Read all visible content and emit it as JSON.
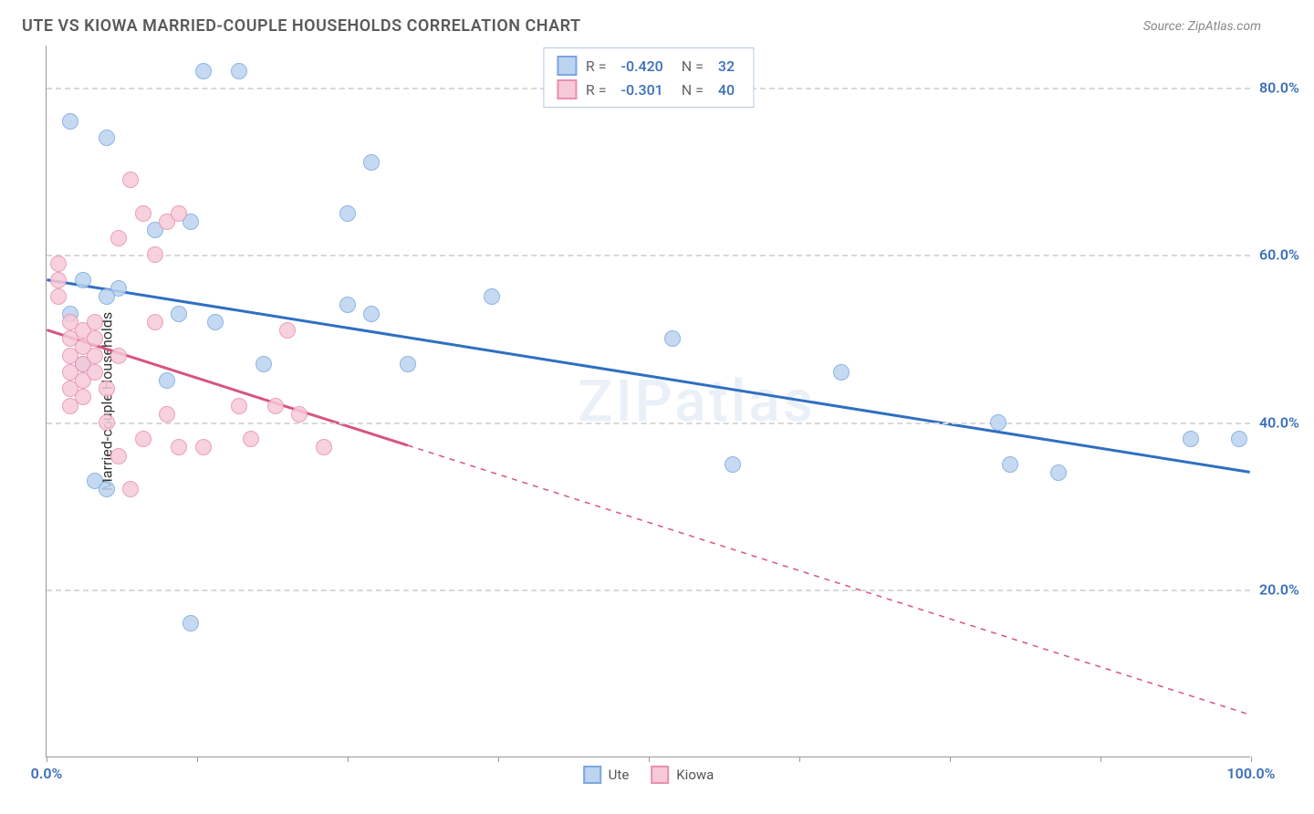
{
  "header": {
    "title": "UTE VS KIOWA MARRIED-COUPLE HOUSEHOLDS CORRELATION CHART",
    "source": "Source: ZipAtlas.com"
  },
  "chart": {
    "type": "scatter",
    "y_axis_label": "Married-couple Households",
    "xlim": [
      0,
      100
    ],
    "ylim": [
      0,
      85
    ],
    "x_ticks": [
      0,
      12.5,
      25,
      37.5,
      50,
      62.5,
      75,
      87.5,
      100
    ],
    "x_tick_labels": {
      "0": "0.0%",
      "100": "100.0%"
    },
    "y_gridlines": [
      20,
      40,
      60,
      80
    ],
    "y_tick_labels": {
      "20": "20.0%",
      "40": "40.0%",
      "60": "60.0%",
      "80": "80.0%"
    },
    "y_label_color": "#3b6fb8",
    "x_label_color": "#3b6fb8",
    "background_color": "#ffffff",
    "grid_color": "#d8d8d8",
    "watermark": "ZIPatlas",
    "marker_radius": 9,
    "series": [
      {
        "name": "Ute",
        "fill": "#bcd4f0",
        "stroke": "#7ba8de",
        "R": "-0.420",
        "N": "32",
        "line": {
          "x1": 0,
          "y1": 57,
          "x2": 100,
          "y2": 34,
          "dash_after_x": null,
          "width": 3,
          "color": "#2f6fc2"
        },
        "points": [
          [
            2,
            76
          ],
          [
            5,
            74
          ],
          [
            13,
            82
          ],
          [
            16,
            82
          ],
          [
            3,
            57
          ],
          [
            6,
            56
          ],
          [
            2,
            53
          ],
          [
            5,
            55
          ],
          [
            9,
            63
          ],
          [
            12,
            64
          ],
          [
            3,
            47
          ],
          [
            10,
            45
          ],
          [
            4,
            33
          ],
          [
            5,
            32
          ],
          [
            11,
            53
          ],
          [
            14,
            52
          ],
          [
            18,
            47
          ],
          [
            25,
            54
          ],
          [
            27,
            53
          ],
          [
            30,
            47
          ],
          [
            27,
            71
          ],
          [
            25,
            65
          ],
          [
            37,
            55
          ],
          [
            52,
            50
          ],
          [
            66,
            46
          ],
          [
            79,
            40
          ],
          [
            80,
            35
          ],
          [
            84,
            34
          ],
          [
            57,
            35
          ],
          [
            95,
            38
          ],
          [
            99,
            38
          ],
          [
            12,
            16
          ]
        ]
      },
      {
        "name": "Kiowa",
        "fill": "#f6c9d8",
        "stroke": "#e890b0",
        "R": "-0.301",
        "N": "40",
        "line": {
          "x1": 0,
          "y1": 51,
          "x2": 100,
          "y2": 5,
          "dash_after_x": 30,
          "width": 3,
          "color": "#d6557f"
        },
        "points": [
          [
            1,
            59
          ],
          [
            1,
            57
          ],
          [
            1,
            55
          ],
          [
            2,
            52
          ],
          [
            2,
            50
          ],
          [
            2,
            48
          ],
          [
            2,
            46
          ],
          [
            2,
            44
          ],
          [
            3,
            49
          ],
          [
            3,
            47
          ],
          [
            3,
            45
          ],
          [
            3,
            51
          ],
          [
            4,
            50
          ],
          [
            4,
            48
          ],
          [
            4,
            52
          ],
          [
            5,
            44
          ],
          [
            5,
            40
          ],
          [
            6,
            48
          ],
          [
            6,
            62
          ],
          [
            7,
            69
          ],
          [
            8,
            65
          ],
          [
            9,
            60
          ],
          [
            10,
            64
          ],
          [
            11,
            65
          ],
          [
            7,
            32
          ],
          [
            6,
            36
          ],
          [
            8,
            38
          ],
          [
            10,
            41
          ],
          [
            11,
            37
          ],
          [
            13,
            37
          ],
          [
            16,
            42
          ],
          [
            17,
            38
          ],
          [
            19,
            42
          ],
          [
            20,
            51
          ],
          [
            21,
            41
          ],
          [
            23,
            37
          ],
          [
            9,
            52
          ],
          [
            3,
            43
          ],
          [
            4,
            46
          ],
          [
            2,
            42
          ]
        ]
      }
    ],
    "bottom_legend": [
      {
        "label": "Ute",
        "fill": "#bcd4f0",
        "stroke": "#7ba8de"
      },
      {
        "label": "Kiowa",
        "fill": "#f6c9d8",
        "stroke": "#e890b0"
      }
    ]
  }
}
